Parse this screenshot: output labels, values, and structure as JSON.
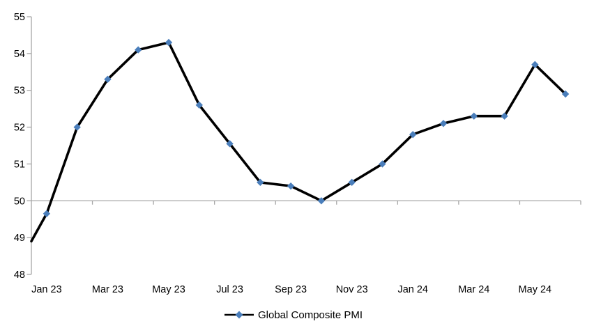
{
  "chart_data": {
    "type": "line",
    "title": "",
    "legend": {
      "position": "bottom",
      "entries": [
        "Global Composite PMI"
      ]
    },
    "series": [
      {
        "name": "Global Composite PMI",
        "line_color": "#000000",
        "marker": "diamond",
        "marker_color": "#4A7EBB",
        "categories": [
          "Jan 23",
          "Feb 23",
          "Mar 23",
          "Apr 23",
          "May 23",
          "Jun 23",
          "Jul 23",
          "Aug 23",
          "Sep 23",
          "Oct 23",
          "Nov 23",
          "Dec 23",
          "Jan 24",
          "Feb 24",
          "Mar 24",
          "Apr 24",
          "May 24",
          "Jun 24"
        ],
        "values": [
          49.65,
          52.0,
          53.3,
          54.1,
          54.3,
          52.6,
          51.55,
          50.5,
          50.4,
          50.0,
          50.5,
          51.0,
          51.8,
          52.1,
          52.3,
          52.3,
          53.7,
          52.9
        ],
        "leading_edge_value": 48.9
      }
    ],
    "x_tick_labels": [
      "Jan 23",
      "Mar 23",
      "May 23",
      "Jul 23",
      "Sep 23",
      "Nov 23",
      "Jan 24",
      "Mar 24",
      "May 24"
    ],
    "x_label_every_n_categories": 2,
    "y_axis": {
      "min": 48,
      "max": 55,
      "tick_interval": 1,
      "tick_labels": [
        "48",
        "49",
        "50",
        "51",
        "52",
        "53",
        "54",
        "55"
      ]
    },
    "x_axis_crosses_at": 50,
    "gridlines": "none",
    "axis_color": "#A6A6A6",
    "text_color": "#000000"
  }
}
